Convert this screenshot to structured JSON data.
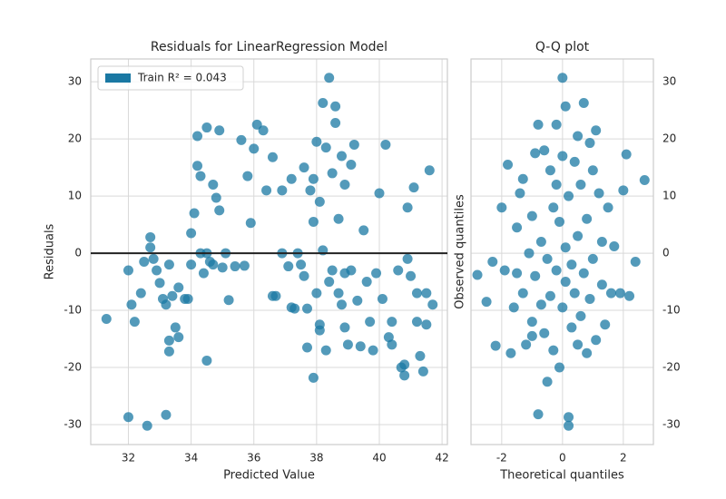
{
  "chart_data": [
    {
      "type": "scatter",
      "title": "Residuals for LinearRegression Model",
      "xlabel": "Predicted Value",
      "ylabel": "Residuals",
      "xlim": [
        30.8,
        42.17
      ],
      "ylim": [
        -33.5,
        34
      ],
      "xticks": [
        32,
        34,
        36,
        38,
        40,
        42
      ],
      "yticks": [
        -30,
        -20,
        -10,
        0,
        10,
        20,
        30
      ],
      "grid": true,
      "legend": "upper left",
      "hline": 0,
      "hline_color": "#222222",
      "yaxis_side": "left",
      "series": [
        {
          "name": "Train R² = 0.043",
          "color": "#1a78a3",
          "x": [
            31.3,
            32.0,
            32.0,
            32.1,
            32.2,
            32.4,
            32.5,
            32.6,
            32.7,
            32.7,
            32.8,
            32.9,
            33.0,
            33.1,
            33.2,
            33.2,
            33.3,
            33.3,
            33.3,
            33.4,
            33.5,
            33.6,
            33.6,
            33.8,
            33.9,
            34.0,
            34.0,
            34.1,
            34.2,
            34.2,
            34.3,
            34.3,
            34.4,
            34.5,
            34.5,
            34.5,
            34.6,
            34.7,
            34.7,
            34.8,
            34.9,
            34.9,
            35.0,
            35.1,
            35.2,
            35.4,
            35.6,
            35.7,
            35.8,
            35.9,
            36.0,
            36.1,
            36.3,
            36.4,
            36.6,
            36.7,
            36.9,
            36.9,
            37.1,
            37.2,
            37.2,
            37.3,
            37.4,
            37.5,
            37.6,
            37.6,
            37.7,
            37.8,
            37.9,
            37.9,
            38.0,
            38.0,
            38.1,
            38.1,
            38.1,
            38.2,
            38.2,
            38.3,
            38.3,
            38.4,
            38.4,
            38.5,
            38.5,
            38.6,
            38.6,
            38.7,
            38.7,
            38.8,
            38.8,
            38.9,
            38.9,
            39.0,
            39.1,
            39.1,
            39.2,
            39.3,
            39.4,
            39.5,
            39.6,
            39.7,
            39.8,
            39.9,
            40.0,
            40.1,
            40.2,
            40.4,
            40.4,
            40.6,
            40.7,
            40.8,
            40.8,
            40.9,
            40.9,
            41.0,
            41.1,
            41.2,
            41.2,
            41.3,
            41.4,
            41.5,
            41.5,
            41.6,
            41.7,
            37.9,
            36.6,
            38.9,
            40.3,
            37.7
          ],
          "values": [
            -11.5,
            -3,
            -28.7,
            -9,
            -12,
            -7,
            -1.5,
            -30.2,
            1,
            2.8,
            -1,
            -3,
            -5.2,
            -8,
            -9,
            -28.3,
            -2,
            -15.3,
            -17.2,
            -7.5,
            -13,
            -6,
            -14.7,
            -8,
            -8,
            -2,
            3.5,
            7,
            15.3,
            20.5,
            0,
            13.5,
            -3.5,
            0,
            22,
            -18.8,
            -1.5,
            -2,
            12,
            9.7,
            21.5,
            7.5,
            -2.5,
            0,
            -8.2,
            -2.3,
            19.8,
            -2.2,
            13.5,
            5.3,
            18.3,
            22.5,
            21.5,
            11,
            -7.5,
            -7.5,
            11,
            0,
            -2.3,
            -9.5,
            13,
            -9.7,
            0,
            -2,
            15,
            -4,
            -9.7,
            11,
            13,
            5.5,
            19.5,
            -7,
            9,
            -12.5,
            -13.5,
            26.3,
            0.5,
            18.5,
            -17,
            -5,
            30.7,
            14,
            -3,
            22.8,
            25.7,
            -7,
            6,
            17,
            -9,
            12,
            -3.5,
            -16,
            -3,
            15.5,
            19,
            -8.3,
            -16.3,
            4,
            -5,
            -12,
            -17,
            -3.5,
            10.5,
            -8,
            19,
            -12,
            -16,
            -3,
            -20,
            -19.5,
            -21.4,
            8,
            -1,
            -4,
            11.5,
            -12,
            -7,
            -18,
            -20.7,
            -12.5,
            -7,
            14.5,
            -9,
            -21.8,
            16.8,
            -13,
            -14.7,
            -16.5
          ]
        }
      ]
    },
    {
      "type": "scatter",
      "title": "Q-Q plot",
      "xlabel": "Theoretical quantiles",
      "ylabel": "Observed quantiles",
      "xlim": [
        -3.01,
        2.99
      ],
      "ylim": [
        -33.5,
        34
      ],
      "xticks": [
        -2,
        0,
        2
      ],
      "yticks": [
        -30,
        -20,
        -10,
        0,
        10,
        20,
        30
      ],
      "grid": true,
      "yaxis_side": "right",
      "series": [
        {
          "color": "#1a78a3",
          "x": [
            2.7,
            -2.8,
            -2.5,
            -2.3,
            -2.2,
            -2.0,
            -1.8,
            -1.7,
            -1.6,
            -1.5,
            -1.5,
            -1.4,
            -1.3,
            -1.3,
            -1.2,
            -1.1,
            -1.0,
            -1.0,
            -0.9,
            -0.9,
            -0.8,
            -0.8,
            -0.7,
            -0.7,
            -0.6,
            -0.6,
            -0.5,
            -0.5,
            -0.4,
            -0.4,
            -0.3,
            -0.3,
            -0.2,
            -0.2,
            -0.1,
            -0.1,
            0.0,
            0.0,
            0.0,
            0.1,
            0.1,
            0.1,
            0.2,
            0.2,
            0.2,
            0.3,
            0.3,
            0.4,
            0.4,
            0.5,
            0.5,
            0.6,
            0.6,
            0.7,
            0.7,
            0.8,
            0.8,
            0.9,
            0.9,
            1.0,
            1.0,
            1.1,
            1.2,
            1.3,
            1.3,
            1.4,
            1.5,
            1.6,
            1.7,
            1.9,
            2.0,
            2.1,
            2.2,
            2.4,
            -1.9,
            -1.0,
            0.5,
            -0.2,
            1.1
          ],
          "values": [
            12.8,
            -3.8,
            -8.5,
            -1.5,
            -16.2,
            8,
            15.5,
            -17.5,
            -9.5,
            -3.5,
            4.5,
            10.5,
            -7,
            13,
            -16,
            0,
            -12,
            6.5,
            -4,
            17.5,
            -28.2,
            22.5,
            -9,
            2,
            18,
            -14,
            -22.5,
            -1,
            14.5,
            -7.5,
            8,
            -17,
            12,
            -3,
            -20,
            5.5,
            17,
            -9.5,
            30.7,
            -5,
            25.7,
            1,
            -30.2,
            -28.7,
            10,
            -13,
            -2,
            16,
            -7,
            20.5,
            3,
            -11,
            12,
            -3.5,
            26.3,
            -17.5,
            6,
            19.3,
            -8,
            -1,
            14.5,
            -15.2,
            10.5,
            -5.5,
            2,
            -12.5,
            8,
            -7,
            1.2,
            -7,
            11,
            17.3,
            -7.5,
            -1.5,
            -3,
            -14.5,
            -16,
            22.5,
            21.5
          ]
        }
      ]
    }
  ]
}
